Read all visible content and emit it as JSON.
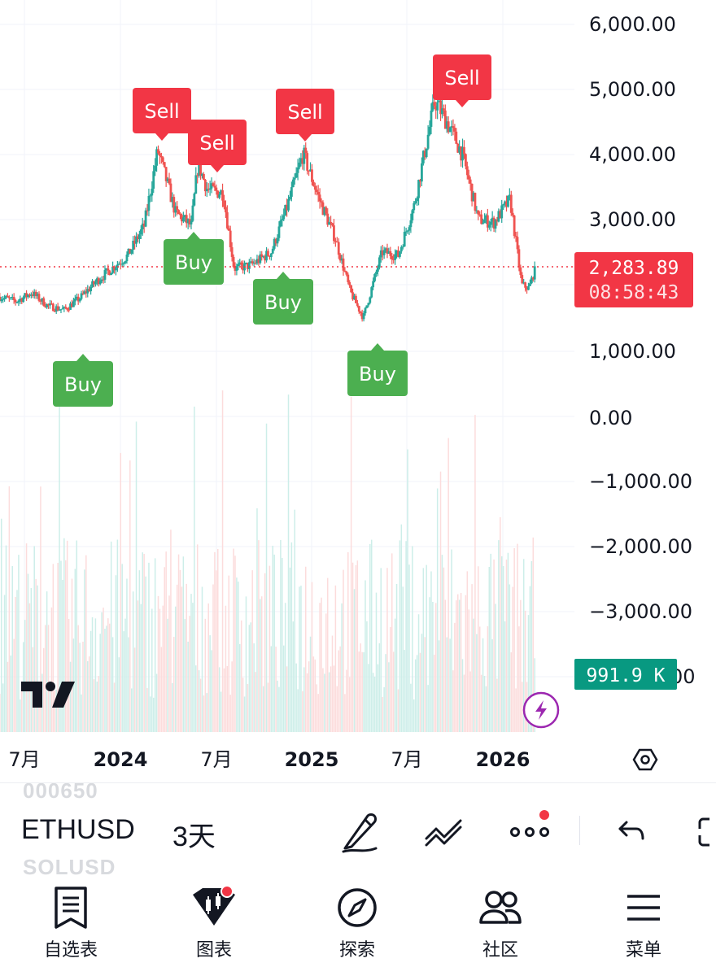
{
  "chart": {
    "symbol": "ETHUSD",
    "interval": "3天",
    "ghost_symbol_above": "000650",
    "ghost_symbol_below": "SOLUSD",
    "last_price": "2,283.89",
    "countdown": "08:58:43",
    "volume_label": "991.9 K",
    "y_axis_labels": [
      "6,000.00",
      "5,000.00",
      "4,000.00",
      "3,000.00",
      "1,000.00",
      "0.00",
      "−1,000.00",
      "−2,000.00",
      "−3,000.00"
    ],
    "x_axis_labels": [
      "7月",
      "2024",
      "7月",
      "2025",
      "7月",
      "2026"
    ],
    "signals": [
      {
        "type": "sell",
        "label": "Sell"
      },
      {
        "type": "sell",
        "label": "Sell"
      },
      {
        "type": "sell",
        "label": "Sell"
      },
      {
        "type": "sell",
        "label": "Sell"
      },
      {
        "type": "buy",
        "label": "Buy"
      },
      {
        "type": "buy",
        "label": "Buy"
      },
      {
        "type": "buy",
        "label": "Buy"
      },
      {
        "type": "buy",
        "label": "Buy"
      }
    ],
    "colors": {
      "up": "#26a69a",
      "down": "#ef5350",
      "sell": "#f23645",
      "buy": "#4caf50",
      "price_tag": "#f23645",
      "volume_tag": "#089981",
      "grid": "#f0f3fa"
    }
  },
  "chart_data": {
    "type": "candlestick",
    "title": "",
    "ylim": [
      -3500,
      6000
    ],
    "x_range": [
      "2023-05",
      "2026-03"
    ],
    "close_path": [
      [
        "2023-05-15",
        1820
      ],
      [
        "2023-06-15",
        1750
      ],
      [
        "2023-07-15",
        1880
      ],
      [
        "2023-08-15",
        1680
      ],
      [
        "2023-09-15",
        1620
      ],
      [
        "2023-10-15",
        1800
      ],
      [
        "2023-11-15",
        2050
      ],
      [
        "2023-12-15",
        2250
      ],
      [
        "2024-01-15",
        2450
      ],
      [
        "2024-02-15",
        2900
      ],
      [
        "2024-03-12",
        4050
      ],
      [
        "2024-04-15",
        3100
      ],
      [
        "2024-05-15",
        2900
      ],
      [
        "2024-05-28",
        3850
      ],
      [
        "2024-06-15",
        3450
      ],
      [
        "2024-07-15",
        3400
      ],
      [
        "2024-08-05",
        2250
      ],
      [
        "2024-09-06",
        2300
      ],
      [
        "2024-10-15",
        2500
      ],
      [
        "2024-11-15",
        3200
      ],
      [
        "2024-12-15",
        4000
      ],
      [
        "2025-01-15",
        3300
      ],
      [
        "2025-02-15",
        2700
      ],
      [
        "2025-03-15",
        1900
      ],
      [
        "2025-04-09",
        1500
      ],
      [
        "2025-05-15",
        2500
      ],
      [
        "2025-06-15",
        2450
      ],
      [
        "2025-07-15",
        3200
      ],
      [
        "2025-08-24",
        4800
      ],
      [
        "2025-09-15",
        4500
      ],
      [
        "2025-10-15",
        4000
      ],
      [
        "2025-11-15",
        3000
      ],
      [
        "2025-12-15",
        2950
      ],
      [
        "2026-01-15",
        3300
      ],
      [
        "2026-02-06",
        2000
      ],
      [
        "2026-02-20",
        1950
      ],
      [
        "2026-03-05",
        2283.89
      ]
    ],
    "last_price": 2283.89,
    "last_volume": "991.9 K"
  },
  "toolbar": {
    "icons": [
      "pen-icon",
      "indicators-icon",
      "more-icon",
      "undo-icon",
      "fullscreen-icon"
    ]
  },
  "bottom_nav": {
    "items": [
      {
        "name": "watchlist",
        "label": "自选表",
        "icon": "bookmark-list-icon"
      },
      {
        "name": "chart",
        "label": "图表",
        "icon": "candle-chart-icon"
      },
      {
        "name": "explore",
        "label": "探索",
        "icon": "compass-icon"
      },
      {
        "name": "community",
        "label": "社区",
        "icon": "people-icon"
      },
      {
        "name": "menu",
        "label": "菜单",
        "icon": "hamburger-icon"
      }
    ]
  }
}
